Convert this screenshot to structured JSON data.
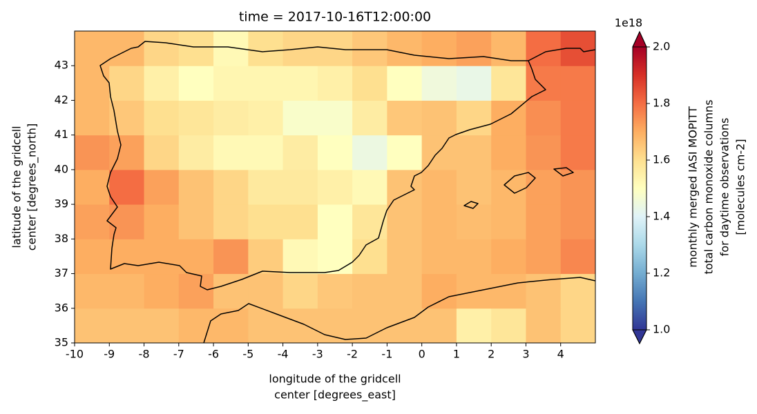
{
  "chart_data": {
    "type": "heatmap",
    "title": "time = 2017-10-16T12:00:00",
    "x_label": [
      "longitude of the gridcell",
      "center [degrees_east]"
    ],
    "y_label": [
      "latitude of the gridcell",
      "center [degrees_north]"
    ],
    "xbins": [
      -10,
      -9,
      -8,
      -7,
      -6,
      -5,
      -4,
      -3,
      -2,
      -1,
      0,
      1,
      2,
      3,
      4,
      5
    ],
    "ybins": [
      35,
      36,
      37,
      38,
      39,
      40,
      41,
      42,
      43,
      44
    ],
    "values": [
      [
        1.66,
        1.66,
        1.66,
        1.68,
        1.68,
        1.66,
        1.66,
        1.66,
        1.66,
        1.66,
        1.66,
        1.55,
        1.58,
        1.66,
        1.62
      ],
      [
        1.68,
        1.68,
        1.7,
        1.72,
        1.66,
        1.66,
        1.62,
        1.65,
        1.66,
        1.66,
        1.7,
        1.68,
        1.68,
        1.66,
        1.62
      ],
      [
        1.7,
        1.7,
        1.7,
        1.7,
        1.74,
        1.64,
        1.52,
        1.5,
        1.6,
        1.66,
        1.68,
        1.68,
        1.7,
        1.72,
        1.76
      ],
      [
        1.72,
        1.74,
        1.7,
        1.66,
        1.62,
        1.6,
        1.6,
        1.5,
        1.58,
        1.66,
        1.68,
        1.67,
        1.68,
        1.72,
        1.74
      ],
      [
        1.7,
        1.8,
        1.72,
        1.66,
        1.62,
        1.57,
        1.57,
        1.55,
        1.52,
        1.66,
        1.68,
        1.66,
        1.68,
        1.72,
        1.74
      ],
      [
        1.74,
        1.72,
        1.62,
        1.56,
        1.52,
        1.52,
        1.56,
        1.5,
        1.44,
        1.5,
        1.66,
        1.66,
        1.7,
        1.74,
        1.78
      ],
      [
        1.68,
        1.65,
        1.6,
        1.58,
        1.56,
        1.55,
        1.48,
        1.48,
        1.56,
        1.65,
        1.66,
        1.62,
        1.7,
        1.75,
        1.78
      ],
      [
        1.68,
        1.62,
        1.55,
        1.5,
        1.53,
        1.53,
        1.53,
        1.55,
        1.6,
        1.5,
        1.45,
        1.43,
        1.58,
        1.78,
        1.78
      ],
      [
        1.68,
        1.68,
        1.62,
        1.6,
        1.52,
        1.6,
        1.62,
        1.62,
        1.65,
        1.68,
        1.7,
        1.72,
        1.68,
        1.8,
        1.85
      ]
    ],
    "xlim": [
      -10,
      5
    ],
    "ylim": [
      35,
      44
    ],
    "xticks": [
      -10,
      -9,
      -8,
      -7,
      -6,
      -5,
      -4,
      -3,
      -2,
      -1,
      0,
      1,
      2,
      3,
      4
    ],
    "yticks": [
      35,
      36,
      37,
      38,
      39,
      40,
      41,
      42,
      43
    ],
    "colorscale": [
      "#313695",
      "#4575b4",
      "#74add1",
      "#abd9e9",
      "#e0f3f8",
      "#ffffbf",
      "#fee090",
      "#fdae61",
      "#f46d43",
      "#d73027",
      "#a50026"
    ],
    "clim": [
      1.0,
      2.0
    ],
    "cticks": [
      {
        "value": 1,
        "label": "1.0"
      },
      1.2,
      1.4,
      1.6,
      1.8,
      {
        "value": 2,
        "label": "2.0"
      }
    ],
    "colorbar_offset": "1e18",
    "colorbar_label": [
      "monthly merged IASI MOPITT",
      "total carbon monoxide columns",
      "for daytime observations",
      "[molecules cm-2]"
    ]
  }
}
